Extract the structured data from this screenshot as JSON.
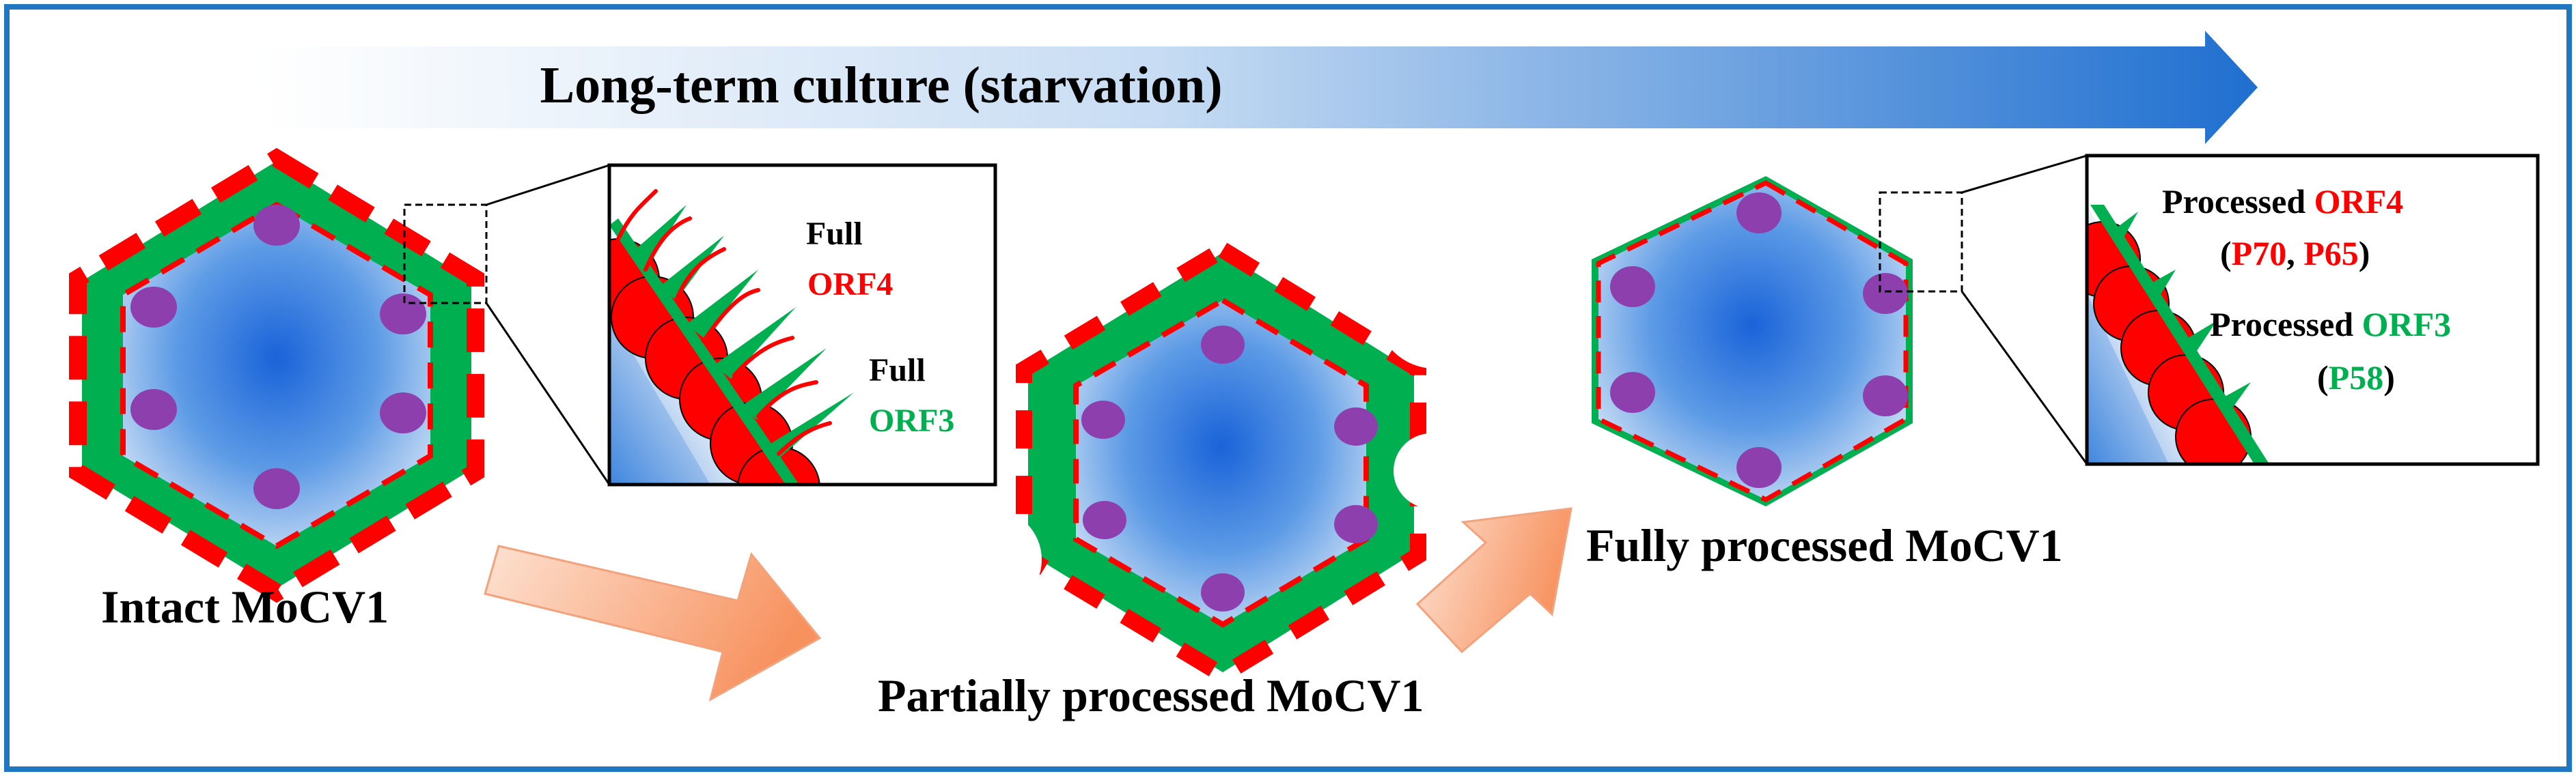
{
  "banner": {
    "text": "Long-term culture (starvation)"
  },
  "stages": {
    "intact": {
      "label": "Intact MoCV1"
    },
    "partial": {
      "label": "Partially processed MoCV1"
    },
    "full": {
      "label": "Fully processed MoCV1"
    }
  },
  "inset_intact": {
    "orf4_word": "Full",
    "orf4_name": "ORF4",
    "orf3_word": "Full",
    "orf3_name": "ORF3"
  },
  "inset_processed": {
    "orf4_word": "Processed",
    "orf4_name": "ORF4",
    "orf4_open": "(",
    "orf4_p70": "P70",
    "orf4_sep": ", ",
    "orf4_p65": "P65",
    "orf4_close": ")",
    "orf3_word": "Processed",
    "orf3_name": "ORF3",
    "orf3_open": "(",
    "orf3_p58": "P58",
    "orf3_close": ")"
  },
  "colors": {
    "frame": "#1f77c2",
    "orf4_red": "#ff0000",
    "orf3_green": "#00b050",
    "capsid_blue": "#1560d8",
    "purple": "#8e3fae",
    "arrow_peach": "#f9a77f",
    "banner_blue": "#1f6fd0"
  },
  "icons": [
    "hexagon-capsid",
    "purple-subunit",
    "zoom-box",
    "process-arrow",
    "banner-arrow"
  ]
}
